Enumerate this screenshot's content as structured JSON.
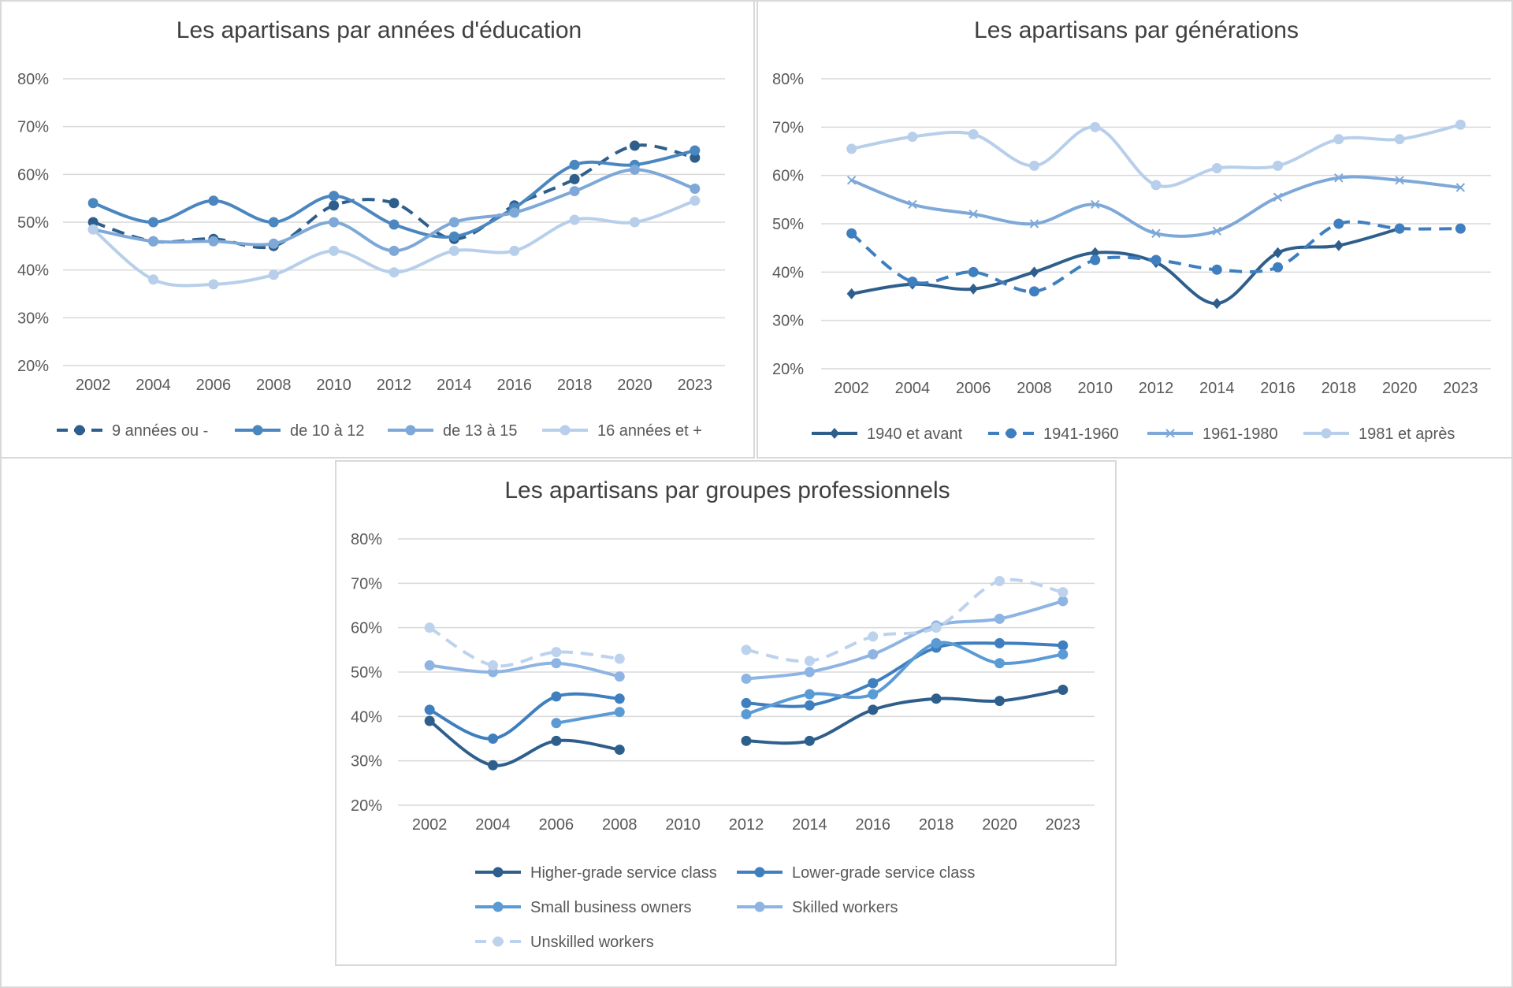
{
  "chart_data": [
    {
      "type": "line",
      "title": "Les apartisans par années d'éducation",
      "xlabel": "",
      "ylabel": "",
      "ylim": [
        20,
        80
      ],
      "yticks": [
        "20%",
        "30%",
        "40%",
        "50%",
        "60%",
        "70%",
        "80%"
      ],
      "categories": [
        "2002",
        "2004",
        "2006",
        "2008",
        "2010",
        "2012",
        "2014",
        "2016",
        "2018",
        "2020",
        "2023"
      ],
      "grid": true,
      "legend_position": "bottom",
      "series": [
        {
          "name": "9 années ou -",
          "color": "#2e5f8c",
          "dash": true,
          "marker": "circle",
          "values": [
            50,
            46,
            46.5,
            45,
            53.5,
            54,
            46.5,
            53.5,
            59,
            66,
            63.5
          ]
        },
        {
          "name": "de 10 à 12",
          "color": "#4a86bf",
          "dash": false,
          "marker": "circle",
          "values": [
            54,
            50,
            54.5,
            50,
            55.5,
            49.5,
            47,
            53,
            62,
            62,
            65
          ]
        },
        {
          "name": "de 13 à 15",
          "color": "#7ea8d8",
          "dash": false,
          "marker": "circle",
          "values": [
            48.5,
            46,
            46,
            45.5,
            50,
            44,
            50,
            52,
            56.5,
            61,
            57
          ]
        },
        {
          "name": "16 années et +",
          "color": "#b7cfea",
          "dash": false,
          "marker": "circle",
          "values": [
            48.5,
            38,
            37,
            39,
            44,
            39.5,
            44,
            44,
            50.5,
            50,
            54.5
          ]
        }
      ]
    },
    {
      "type": "line",
      "title": "Les apartisans par générations",
      "xlabel": "",
      "ylabel": "",
      "ylim": [
        20,
        80
      ],
      "yticks": [
        "20%",
        "30%",
        "40%",
        "50%",
        "60%",
        "70%",
        "80%"
      ],
      "categories": [
        "2002",
        "2004",
        "2006",
        "2008",
        "2010",
        "2012",
        "2014",
        "2016",
        "2018",
        "2020",
        "2023"
      ],
      "grid": true,
      "legend_position": "bottom",
      "series": [
        {
          "name": "1940 et avant",
          "color": "#2e5f8c",
          "dash": false,
          "marker": "diamond",
          "values": [
            35.5,
            37.5,
            36.5,
            40,
            44,
            42,
            33.5,
            44,
            45.5,
            49,
            null
          ]
        },
        {
          "name": "1941-1960",
          "color": "#3f7fbf",
          "dash": true,
          "marker": "circle",
          "values": [
            48,
            38,
            40,
            36,
            42.5,
            42.5,
            40.5,
            41,
            50,
            49,
            49
          ]
        },
        {
          "name": "1961-1980",
          "color": "#7ea8d8",
          "dash": false,
          "marker": "x",
          "values": [
            59,
            54,
            52,
            50,
            54,
            48,
            48.5,
            55.5,
            59.5,
            59,
            57.5
          ]
        },
        {
          "name": "1981 et après",
          "color": "#b7cfea",
          "dash": false,
          "marker": "circle",
          "values": [
            65.5,
            68,
            68.5,
            62,
            70,
            58,
            61.5,
            62,
            67.5,
            67.5,
            70.5
          ]
        }
      ]
    },
    {
      "type": "line",
      "title": "Les apartisans par groupes professionnels",
      "xlabel": "",
      "ylabel": "",
      "ylim": [
        20,
        80
      ],
      "yticks": [
        "20%",
        "30%",
        "40%",
        "50%",
        "60%",
        "70%",
        "80%"
      ],
      "categories": [
        "2002",
        "2004",
        "2006",
        "2008",
        "2010",
        "2012",
        "2014",
        "2016",
        "2018",
        "2020",
        "2023"
      ],
      "grid": true,
      "legend_position": "bottom",
      "series": [
        {
          "name": "Higher-grade service class",
          "color": "#2e5f8c",
          "dash": false,
          "marker": "circle",
          "values": [
            39,
            29,
            34.5,
            32.5,
            null,
            34.5,
            34.5,
            41.5,
            44,
            43.5,
            46
          ]
        },
        {
          "name": "Lower-grade service class",
          "color": "#3f7fbf",
          "dash": false,
          "marker": "circle",
          "values": [
            41.5,
            35,
            44.5,
            44,
            null,
            43,
            42.5,
            47.5,
            55.5,
            56.5,
            56
          ]
        },
        {
          "name": "Small business owners",
          "color": "#5b9bd5",
          "dash": false,
          "marker": "circle",
          "values": [
            null,
            null,
            38.5,
            41,
            null,
            40.5,
            45,
            45,
            56.5,
            52,
            54
          ]
        },
        {
          "name": "Skilled workers",
          "color": "#8eb4e3",
          "dash": false,
          "marker": "circle",
          "values": [
            51.5,
            50,
            52,
            49,
            null,
            48.5,
            50,
            54,
            60.5,
            62,
            66
          ]
        },
        {
          "name": "Unskilled workers",
          "color": "#bdd2ec",
          "dash": true,
          "marker": "circle",
          "values": [
            60,
            51.5,
            54.5,
            53,
            null,
            55,
            52.5,
            58,
            60,
            70.5,
            68
          ]
        }
      ]
    }
  ]
}
